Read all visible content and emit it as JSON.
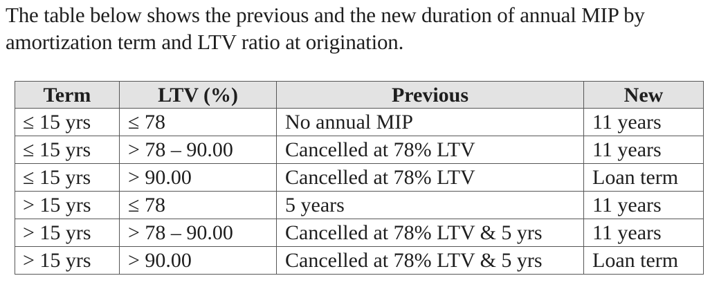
{
  "intro": {
    "line1": "The table below shows the previous and the new duration of annual MIP by",
    "line2": "amortization term and LTV ratio at origination."
  },
  "table": {
    "headers": {
      "term": "Term",
      "ltv": "LTV (%)",
      "previous": "Previous",
      "new": "New"
    },
    "rows": [
      {
        "term": "≤ 15 yrs",
        "ltv": "≤ 78",
        "previous": "No annual MIP",
        "new": "11 years"
      },
      {
        "term": "≤ 15 yrs",
        "ltv": "> 78 – 90.00",
        "previous": "Cancelled at 78% LTV",
        "new": "11 years"
      },
      {
        "term": "≤ 15 yrs",
        "ltv": "> 90.00",
        "previous": "Cancelled at 78% LTV",
        "new": "Loan term"
      },
      {
        "term": "> 15 yrs",
        "ltv": "≤ 78",
        "previous": "5 years",
        "new": "11 years"
      },
      {
        "term": "> 15 yrs",
        "ltv": "> 78 – 90.00",
        "previous": "Cancelled at 78% LTV & 5 yrs",
        "new": "11 years"
      },
      {
        "term": "> 15 yrs",
        "ltv": "> 90.00",
        "previous": "Cancelled at 78% LTV & 5 yrs",
        "new": "Loan term"
      }
    ]
  },
  "colors": {
    "header_background": "#e3e3e3",
    "border": "#555555",
    "text": "#1e1e1e"
  }
}
